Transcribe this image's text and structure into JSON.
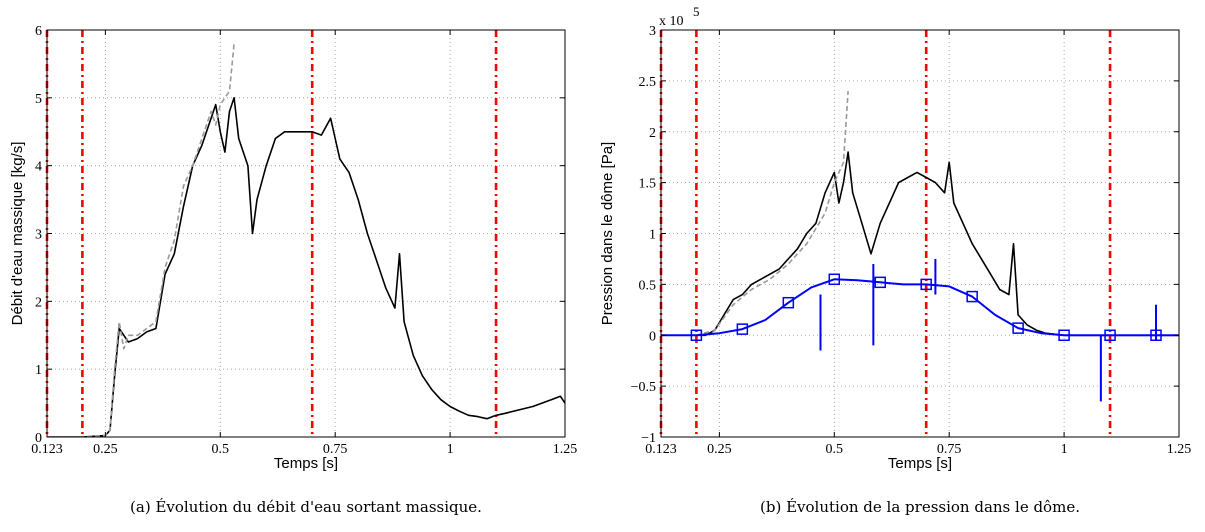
{
  "chart_data": [
    {
      "type": "line",
      "id": "a",
      "caption": "(a) Évolution du débit d'eau sortant massique.",
      "xlabel": "Temps [s]",
      "ylabel": "Débit d'eau massique [kg/s]",
      "xlim": [
        0.123,
        1.25
      ],
      "ylim": [
        0,
        6
      ],
      "x_ticks": [
        0.123,
        0.25,
        0.5,
        0.75,
        1,
        1.25
      ],
      "x_tick_labels": [
        "0.123",
        "0.25",
        "0.5",
        "0.75",
        "1",
        "1.25"
      ],
      "y_ticks": [
        0,
        1,
        2,
        3,
        4,
        5,
        6
      ],
      "y_tick_labels": [
        "0",
        "1",
        "2",
        "3",
        "4",
        "5",
        "6"
      ],
      "grid": true,
      "vlines": [
        0.123,
        0.2,
        0.7,
        1.1
      ],
      "vline_color": "#ff0000",
      "series": [
        {
          "color": "#000000",
          "style": "solid",
          "x": [
            0.123,
            0.2,
            0.25,
            0.26,
            0.27,
            0.28,
            0.29,
            0.3,
            0.32,
            0.34,
            0.36,
            0.38,
            0.4,
            0.42,
            0.44,
            0.46,
            0.48,
            0.49,
            0.5,
            0.51,
            0.52,
            0.53,
            0.54,
            0.56,
            0.57,
            0.58,
            0.6,
            0.62,
            0.64,
            0.66,
            0.68,
            0.7,
            0.72,
            0.74,
            0.75,
            0.76,
            0.78,
            0.8,
            0.82,
            0.84,
            0.86,
            0.88,
            0.89,
            0.9,
            0.92,
            0.94,
            0.96,
            0.98,
            1.0,
            1.02,
            1.04,
            1.06,
            1.08,
            1.1,
            1.12,
            1.15,
            1.18,
            1.2,
            1.22,
            1.24,
            1.25
          ],
          "y": [
            0.0,
            0.0,
            0.02,
            0.1,
            0.9,
            1.6,
            1.5,
            1.4,
            1.45,
            1.55,
            1.6,
            2.4,
            2.7,
            3.4,
            4.0,
            4.3,
            4.7,
            4.9,
            4.5,
            4.2,
            4.8,
            5.0,
            4.4,
            4.0,
            3.0,
            3.5,
            4.0,
            4.4,
            4.5,
            4.5,
            4.5,
            4.5,
            4.45,
            4.7,
            4.4,
            4.1,
            3.9,
            3.5,
            3.0,
            2.6,
            2.2,
            1.9,
            2.7,
            1.7,
            1.2,
            0.9,
            0.7,
            0.55,
            0.45,
            0.38,
            0.32,
            0.3,
            0.27,
            0.32,
            0.35,
            0.4,
            0.45,
            0.5,
            0.55,
            0.6,
            0.5
          ]
        },
        {
          "color": "#999999",
          "style": "dashed",
          "x": [
            0.123,
            0.2,
            0.25,
            0.26,
            0.27,
            0.28,
            0.29,
            0.3,
            0.32,
            0.34,
            0.36,
            0.38,
            0.4,
            0.42,
            0.44,
            0.46,
            0.48,
            0.49,
            0.5,
            0.51,
            0.52,
            0.53
          ],
          "y": [
            0.0,
            0.0,
            0.02,
            0.1,
            1.0,
            1.7,
            1.3,
            1.5,
            1.5,
            1.6,
            1.7,
            2.5,
            2.9,
            3.7,
            4.0,
            4.4,
            4.8,
            4.6,
            4.9,
            5.0,
            5.1,
            5.8
          ]
        }
      ]
    },
    {
      "type": "line",
      "id": "b",
      "caption": "(b) Évolution de la pression dans le dôme.",
      "xlabel": "Temps [s]",
      "ylabel": "Pression dans le dôme [Pa]",
      "multiplier": "x 10",
      "multiplier_exp": "5",
      "xlim": [
        0.123,
        1.25
      ],
      "ylim": [
        -1,
        3
      ],
      "x_ticks": [
        0.123,
        0.25,
        0.5,
        0.75,
        1,
        1.25
      ],
      "x_tick_labels": [
        "0.123",
        "0.25",
        "0.5",
        "0.75",
        "1",
        "1.25"
      ],
      "y_ticks": [
        -1,
        -0.5,
        0,
        0.5,
        1,
        1.5,
        2,
        2.5,
        3
      ],
      "y_tick_labels": [
        "−1",
        "−0.5",
        "0",
        "0.5",
        "1",
        "1.5",
        "2",
        "2.5",
        "3"
      ],
      "grid": true,
      "vlines": [
        0.123,
        0.2,
        0.7,
        1.1
      ],
      "vline_color": "#ff0000",
      "series": [
        {
          "color": "#000000",
          "style": "solid",
          "x": [
            0.2,
            0.22,
            0.24,
            0.26,
            0.28,
            0.3,
            0.32,
            0.34,
            0.36,
            0.38,
            0.4,
            0.42,
            0.44,
            0.46,
            0.48,
            0.5,
            0.51,
            0.52,
            0.53,
            0.54,
            0.56,
            0.58,
            0.6,
            0.62,
            0.64,
            0.66,
            0.68,
            0.7,
            0.72,
            0.74,
            0.75,
            0.76,
            0.78,
            0.8,
            0.82,
            0.84,
            0.86,
            0.88,
            0.89,
            0.9,
            0.92,
            0.94,
            0.96,
            1.0,
            1.05,
            1.1,
            1.15,
            1.2,
            1.25
          ],
          "y": [
            0.0,
            0.0,
            0.05,
            0.2,
            0.35,
            0.4,
            0.5,
            0.55,
            0.6,
            0.65,
            0.75,
            0.85,
            1.0,
            1.1,
            1.4,
            1.6,
            1.3,
            1.5,
            1.8,
            1.4,
            1.1,
            0.8,
            1.1,
            1.3,
            1.5,
            1.55,
            1.6,
            1.55,
            1.5,
            1.4,
            1.7,
            1.3,
            1.1,
            0.9,
            0.75,
            0.6,
            0.45,
            0.4,
            0.9,
            0.2,
            0.1,
            0.05,
            0.02,
            0.0,
            0.0,
            0.0,
            0.0,
            0.0,
            0.0
          ]
        },
        {
          "color": "#999999",
          "style": "dashed",
          "x": [
            0.2,
            0.24,
            0.28,
            0.32,
            0.36,
            0.4,
            0.44,
            0.48,
            0.5,
            0.52,
            0.53
          ],
          "y": [
            0.0,
            0.05,
            0.3,
            0.45,
            0.55,
            0.7,
            0.9,
            1.2,
            1.5,
            1.7,
            2.4
          ]
        },
        {
          "color": "#0000ff",
          "style": "solid",
          "marker": "square",
          "x": [
            0.123,
            0.2,
            0.25,
            0.3,
            0.35,
            0.4,
            0.45,
            0.5,
            0.55,
            0.6,
            0.65,
            0.7,
            0.75,
            0.8,
            0.85,
            0.9,
            0.95,
            1.0,
            1.05,
            1.1,
            1.15,
            1.2,
            1.25
          ],
          "y": [
            0.0,
            0.0,
            0.02,
            0.06,
            0.15,
            0.32,
            0.47,
            0.55,
            0.54,
            0.52,
            0.5,
            0.5,
            0.48,
            0.38,
            0.2,
            0.07,
            0.02,
            0.0,
            0.0,
            0.0,
            0.0,
            0.0,
            0.0
          ],
          "markers_x": [
            0.2,
            0.3,
            0.4,
            0.5,
            0.6,
            0.7,
            0.8,
            0.9,
            1.0,
            1.1,
            1.2
          ],
          "spikes": [
            [
              0.47,
              -0.15,
              0.4
            ],
            [
              0.585,
              -0.1,
              0.7
            ],
            [
              0.72,
              0.4,
              0.75
            ],
            [
              1.08,
              -0.65,
              0.0
            ],
            [
              1.2,
              -0.05,
              0.3
            ]
          ]
        }
      ]
    }
  ]
}
